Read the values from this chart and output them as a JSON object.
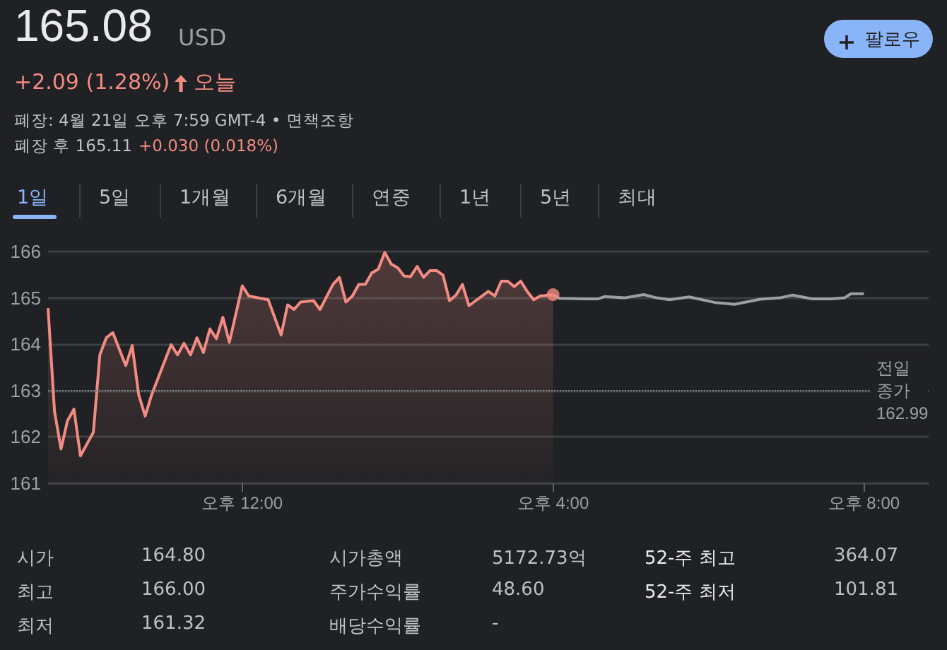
{
  "chart_data": {
    "type": "area",
    "title": "165.08",
    "annotations": [
      "USD",
      "+2.09 (1.28%)",
      "오늘",
      "폐장: 4월 21일 오후 7:59 GMT-4 • 면책조항",
      "폐장 후 165.11",
      "+0.030 (0.018%)",
      "팔로우",
      "1일",
      "5일",
      "1개월",
      "6개월",
      "연중",
      "1년",
      "5년",
      "최대",
      "시가",
      "164.80",
      "시가총액",
      "5172.73억",
      "52-주 최고",
      "364.07",
      "최고",
      "166.00",
      "주가수익률",
      "48.60",
      "52-주 최저",
      "101.81",
      "최저",
      "161.32",
      "배당수익률",
      "-"
    ],
    "categories": [
      null,
      null,
      null,
      null,
      null,
      null,
      null,
      null,
      null,
      null,
      null,
      null,
      null,
      null,
      null,
      null,
      null,
      null,
      null,
      null,
      null,
      null,
      null,
      null,
      null,
      null,
      null,
      null,
      null,
      null,
      "오후 12:00",
      null,
      null,
      null,
      null,
      null,
      null,
      null,
      null,
      null,
      null,
      null,
      null,
      null,
      null,
      null,
      null,
      null,
      null,
      null,
      null,
      null,
      null,
      null,
      null,
      null,
      null,
      null,
      null,
      null,
      null,
      null,
      null,
      null,
      null,
      null,
      null,
      null,
      null,
      null,
      null,
      null,
      null,
      null,
      null,
      null,
      null,
      null,
      "오후 4:00",
      null,
      null,
      null,
      null,
      null,
      null,
      null,
      null,
      null,
      null,
      null,
      null,
      null,
      null,
      null,
      null,
      null,
      null,
      null,
      null,
      null,
      null,
      null,
      null,
      null,
      null,
      null,
      null,
      null,
      null,
      null,
      null,
      null,
      null,
      null,
      null,
      null,
      null,
      null,
      null,
      null,
      null,
      null,
      null,
      null,
      null,
      null,
      "오후 8:00",
      null,
      null,
      null,
      null,
      null,
      null,
      null,
      null,
      null,
      null
    ],
    "series": [
      {
        "color": "#f28b82",
        "values": [
          164.78,
          162.55,
          161.74,
          162.35,
          162.6,
          161.59,
          null,
          162.1,
          163.77,
          164.14,
          164.25,
          null,
          163.54,
          163.97,
          162.91,
          162.45,
          162.91,
          null,
          null,
          163.99,
          163.77,
          164.02,
          163.77,
          164.14,
          163.82,
          164.33,
          164.12,
          164.58,
          164.04,
          null,
          165.26,
          165.04,
          null,
          null,
          164.96,
          null,
          164.2,
          164.85,
          164.75,
          164.91,
          null,
          164.94,
          164.75,
          null,
          165.29,
          165.44,
          164.91,
          165.04,
          165.29,
          165.29,
          165.54,
          165.62,
          165.98,
          165.73,
          165.65,
          165.47,
          165.46,
          165.68,
          165.44,
          165.59,
          165.59,
          165.49,
          164.94,
          165.06,
          165.29,
          164.83,
          null,
          null,
          165.14,
          165.04,
          165.36,
          165.36,
          165.24,
          165.36,
          165.14,
          164.96,
          165.04,
          null,
          165.07,
          null,
          null,
          null,
          null,
          null,
          null,
          null,
          null,
          null,
          null,
          null,
          null,
          null,
          null,
          null,
          null,
          null,
          null,
          null,
          null,
          null,
          null,
          null,
          null,
          null,
          null,
          null,
          null,
          null,
          null,
          null,
          null,
          null,
          null,
          null,
          null,
          null,
          null,
          null,
          null,
          null,
          null,
          null,
          null,
          null,
          null,
          null,
          null,
          null,
          null,
          null,
          null,
          null,
          null,
          null,
          null,
          null,
          null
        ]
      },
      {
        "type": "line",
        "color": "#9aa0a6",
        "values": [
          null,
          null,
          null,
          null,
          null,
          null,
          null,
          null,
          null,
          null,
          null,
          null,
          null,
          null,
          null,
          null,
          null,
          null,
          null,
          null,
          null,
          null,
          null,
          null,
          null,
          null,
          null,
          null,
          null,
          null,
          null,
          null,
          null,
          null,
          null,
          null,
          null,
          null,
          null,
          null,
          null,
          null,
          null,
          null,
          null,
          null,
          null,
          null,
          null,
          null,
          null,
          null,
          null,
          null,
          null,
          null,
          null,
          null,
          null,
          null,
          null,
          null,
          null,
          null,
          null,
          null,
          null,
          null,
          null,
          null,
          null,
          null,
          null,
          null,
          null,
          null,
          null,
          null,
          165.07,
          164.99,
          null,
          null,
          null,
          164.98,
          null,
          164.98,
          165.03,
          null,
          null,
          165.0,
          null,
          null,
          165.07,
          null,
          165.0,
          null,
          164.96,
          null,
          null,
          165.02,
          null,
          null,
          null,
          164.9,
          null,
          null,
          164.86,
          null,
          null,
          null,
          164.97,
          null,
          null,
          165.0,
          null,
          165.06,
          null,
          null,
          164.98,
          null,
          null,
          164.98,
          null,
          165.0,
          165.09,
          null,
          165.09,
          null,
          null,
          null,
          null,
          null,
          null,
          null,
          null,
          null,
          null
        ]
      },
      {
        "type": "scatter",
        "color": "#f28b82",
        "values": [
          null,
          null,
          null,
          null,
          null,
          null,
          null,
          null,
          null,
          null,
          null,
          null,
          null,
          null,
          null,
          null,
          null,
          null,
          null,
          null,
          null,
          null,
          null,
          null,
          null,
          null,
          null,
          null,
          null,
          null,
          null,
          null,
          null,
          null,
          null,
          null,
          null,
          null,
          null,
          null,
          null,
          null,
          null,
          null,
          null,
          null,
          null,
          null,
          null,
          null,
          null,
          null,
          null,
          null,
          null,
          null,
          null,
          null,
          null,
          null,
          null,
          null,
          null,
          null,
          null,
          null,
          null,
          null,
          null,
          null,
          null,
          null,
          null,
          null,
          null,
          null,
          null,
          null,
          165.07,
          null,
          null,
          null,
          null,
          null,
          null,
          null,
          null,
          null,
          null,
          null,
          null,
          null,
          null,
          null,
          null,
          null,
          null,
          null,
          null,
          null,
          null,
          null,
          null,
          null,
          null,
          null,
          null,
          null,
          null,
          null,
          null,
          null,
          null,
          null,
          null,
          null,
          null,
          null,
          null,
          null,
          null,
          null,
          null,
          null,
          null,
          null,
          null,
          null,
          null,
          null,
          null,
          null,
          null,
          null,
          null,
          null,
          null
        ]
      }
    ],
    "ylim": [
      161,
      166
    ],
    "yticks": [
      161,
      162,
      163,
      164,
      165,
      166
    ],
    "ref_lines": [
      {
        "axis": "y",
        "value": 162.99,
        "label": "전일 종가 162.99",
        "line_style": "dotted",
        "color": "#80868b"
      }
    ],
    "grid": "y"
  }
}
